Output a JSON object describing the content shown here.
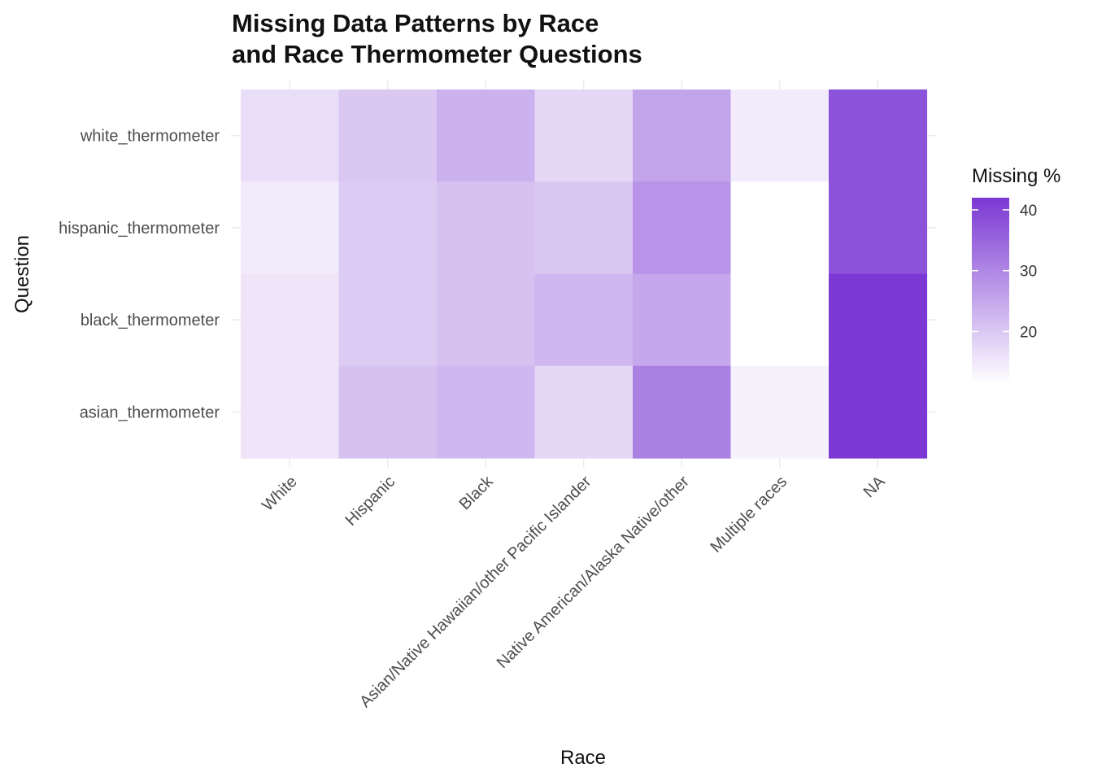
{
  "chart_data": {
    "type": "heatmap",
    "title_lines": [
      "Missing Data Patterns by Race",
      "and Race Thermometer Questions"
    ],
    "xlabel": "Race",
    "ylabel": "Question",
    "x_categories": [
      "White",
      "Hispanic",
      "Black",
      "Asian/Native Hawaiian/other Pacific Islander",
      "Native American/Alaska Native/other",
      "Multiple races",
      "NA"
    ],
    "y_categories": [
      "white_thermometer",
      "hispanic_thermometer",
      "black_thermometer",
      "asian_thermometer"
    ],
    "values": [
      [
        16.5,
        20.0,
        23.5,
        17.5,
        25.5,
        14.5,
        38.0
      ],
      [
        14.5,
        19.5,
        21.0,
        20.0,
        28.0,
        11.5,
        38.0
      ],
      [
        15.5,
        19.5,
        21.0,
        22.5,
        25.0,
        11.5,
        42.0
      ],
      [
        15.5,
        21.0,
        22.5,
        17.5,
        31.0,
        13.5,
        42.0
      ]
    ],
    "legend": {
      "title": "Missing %",
      "breaks": [
        20,
        30,
        40
      ],
      "range": [
        11.5,
        42.0
      ],
      "low_color": "#ffffff",
      "high_color": "#7b38d3"
    },
    "grid": true
  }
}
